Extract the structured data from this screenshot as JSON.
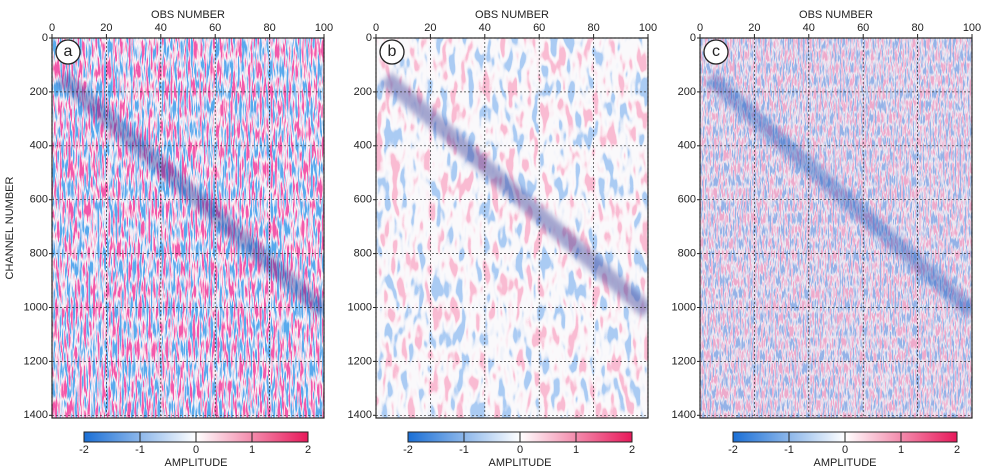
{
  "chart_data": [
    {
      "type": "heatmap",
      "panel_label": "a",
      "xlabel": "OBS NUMBER",
      "ylabel": "CHANNEL NUMBER",
      "xlim": [
        0,
        100
      ],
      "xticks": [
        0,
        20,
        40,
        60,
        80,
        100
      ],
      "ylim": [
        0,
        1410
      ],
      "yticks": [
        0,
        200,
        400,
        600,
        800,
        1000,
        1200,
        1400
      ],
      "invert_y": true,
      "grid": true,
      "colorbar": {
        "label": "AMPLITUDE",
        "lim": [
          -2,
          2
        ],
        "ticks": [
          -2,
          -1,
          0,
          1,
          2
        ],
        "colors": [
          "#1a6fd6",
          "#ffffff",
          "#e8185a"
        ]
      }
    },
    {
      "type": "heatmap",
      "panel_label": "b",
      "xlabel": "OBS NUMBER",
      "xlim": [
        0,
        100
      ],
      "xticks": [
        0,
        20,
        40,
        60,
        80,
        100
      ],
      "ylim": [
        0,
        1410
      ],
      "yticks": [
        0,
        200,
        400,
        600,
        800,
        1000,
        1200,
        1400
      ],
      "invert_y": true,
      "grid": true,
      "colorbar": {
        "label": "AMPLITUDE",
        "lim": [
          -2,
          2
        ],
        "ticks": [
          -2,
          -1,
          0,
          1,
          2
        ],
        "colors": [
          "#1a6fd6",
          "#ffffff",
          "#e8185a"
        ]
      }
    },
    {
      "type": "heatmap",
      "panel_label": "c",
      "xlabel": "OBS NUMBER",
      "xlim": [
        0,
        100
      ],
      "xticks": [
        0,
        20,
        40,
        60,
        80,
        100
      ],
      "ylim": [
        0,
        1410
      ],
      "yticks": [
        0,
        200,
        400,
        600,
        800,
        1000,
        1200,
        1400
      ],
      "invert_y": true,
      "grid": true,
      "colorbar": {
        "label": "AMPLITUDE",
        "lim": [
          -2,
          2
        ],
        "ticks": [
          -2,
          -1,
          0,
          1,
          2
        ],
        "colors": [
          "#1a6fd6",
          "#ffffff",
          "#e8185a"
        ]
      }
    }
  ]
}
